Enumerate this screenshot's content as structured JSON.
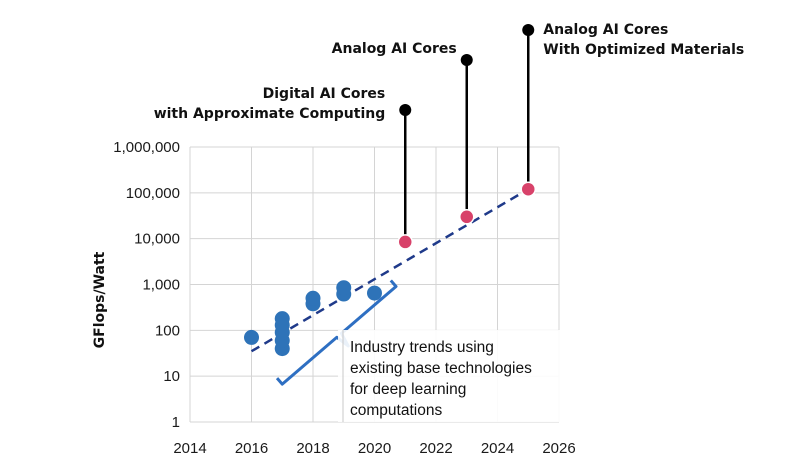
{
  "chart_data": {
    "type": "scatter",
    "title": "",
    "xlabel": "",
    "ylabel": "GFlops/Watt",
    "y_scale": "log",
    "xlim": [
      2014,
      2026
    ],
    "ylim": [
      1,
      1000000
    ],
    "grid": true,
    "x_ticks": [
      "2014",
      "2016",
      "2018",
      "2020",
      "2022",
      "2024",
      "2026"
    ],
    "y_ticks": [
      "1",
      "10",
      "100",
      "1,000",
      "10,000",
      "100,000",
      "1,000,000"
    ],
    "colors": {
      "industry": "#2e73b8",
      "projected": "#d8426a",
      "trend": "#1f3a8a",
      "brace": "#2e6fc2",
      "pin": "#000000"
    },
    "series": [
      {
        "values": [
          {
            "x": 2016,
            "y": 70
          },
          {
            "x": 2017,
            "y": 40
          },
          {
            "x": 2017,
            "y": 60
          },
          {
            "x": 2017,
            "y": 90
          },
          {
            "x": 2017,
            "y": 130
          },
          {
            "x": 2017,
            "y": 180
          },
          {
            "x": 2018,
            "y": 380
          },
          {
            "x": 2018,
            "y": 500
          },
          {
            "x": 2019,
            "y": 620
          },
          {
            "x": 2019,
            "y": 850
          },
          {
            "x": 2020,
            "y": 650
          }
        ]
      },
      {
        "values": [
          {
            "x": 2021,
            "y": 8500
          },
          {
            "x": 2023,
            "y": 30000
          },
          {
            "x": 2025,
            "y": 120000
          }
        ]
      }
    ],
    "trend_line": [
      {
        "x": 2016,
        "y": 35
      },
      {
        "x": 2025,
        "y": 120000
      }
    ],
    "callouts": [
      {
        "lines": [
          "Digital AI Cores",
          "with Approximate Computing"
        ],
        "x": 2021,
        "y": 8500
      },
      {
        "lines": [
          "Analog AI Cores"
        ],
        "x": 2023,
        "y": 30000
      },
      {
        "lines": [
          "Analog AI Cores",
          "With Optimized Materials"
        ],
        "x": 2025,
        "y": 120000
      }
    ],
    "annotation": [
      "Industry trends using",
      "existing base technologies",
      "for deep learning",
      "computations"
    ]
  }
}
